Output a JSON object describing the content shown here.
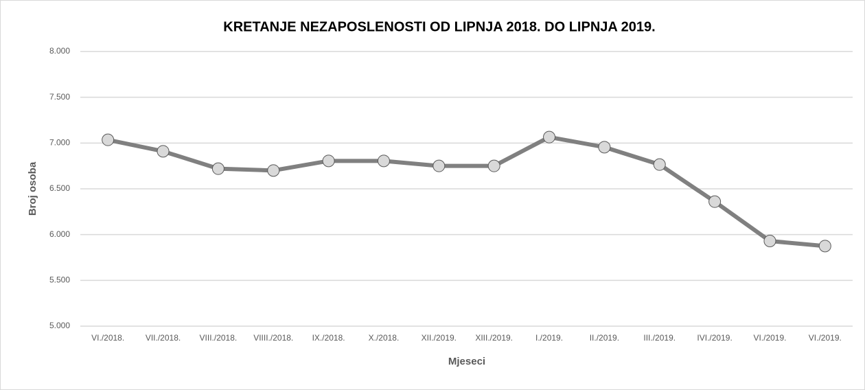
{
  "chart_data": {
    "type": "line",
    "title": "KRETANJE NEZAPOSLENOSTI OD LIPNJA 2018. DO LIPNJA 2019.",
    "x_label": "Mjeseci",
    "y_label": "Broj osoba",
    "categories": [
      "VI./2018.",
      "VII./2018.",
      "VIII./2018.",
      "VIIII./2018.",
      "IX./2018.",
      "X./2018.",
      "XII./2019.",
      "XIII./2019.",
      "I./2019.",
      "II./2019.",
      "III./2019.",
      "IVI./2019.",
      "VI./2019.",
      "VI./2019."
    ],
    "series": [
      {
        "name": "Broj osoba",
        "color": "#808080",
        "values": [
          7035,
          6910,
          6720,
          6700,
          6805,
          6805,
          6750,
          6750,
          7065,
          6955,
          6765,
          6360,
          5930,
          5875
        ]
      }
    ],
    "ylim": [
      5000,
      8000
    ],
    "yticks": [
      {
        "value": 5000,
        "label": "5.000"
      },
      {
        "value": 5500,
        "label": "5.500"
      },
      {
        "value": 6000,
        "label": "6.000"
      },
      {
        "value": 6500,
        "label": "6.500"
      },
      {
        "value": 7000,
        "label": "7.000"
      },
      {
        "value": 7500,
        "label": "7.500"
      },
      {
        "value": 8000,
        "label": "8.000"
      }
    ],
    "grid": true
  }
}
